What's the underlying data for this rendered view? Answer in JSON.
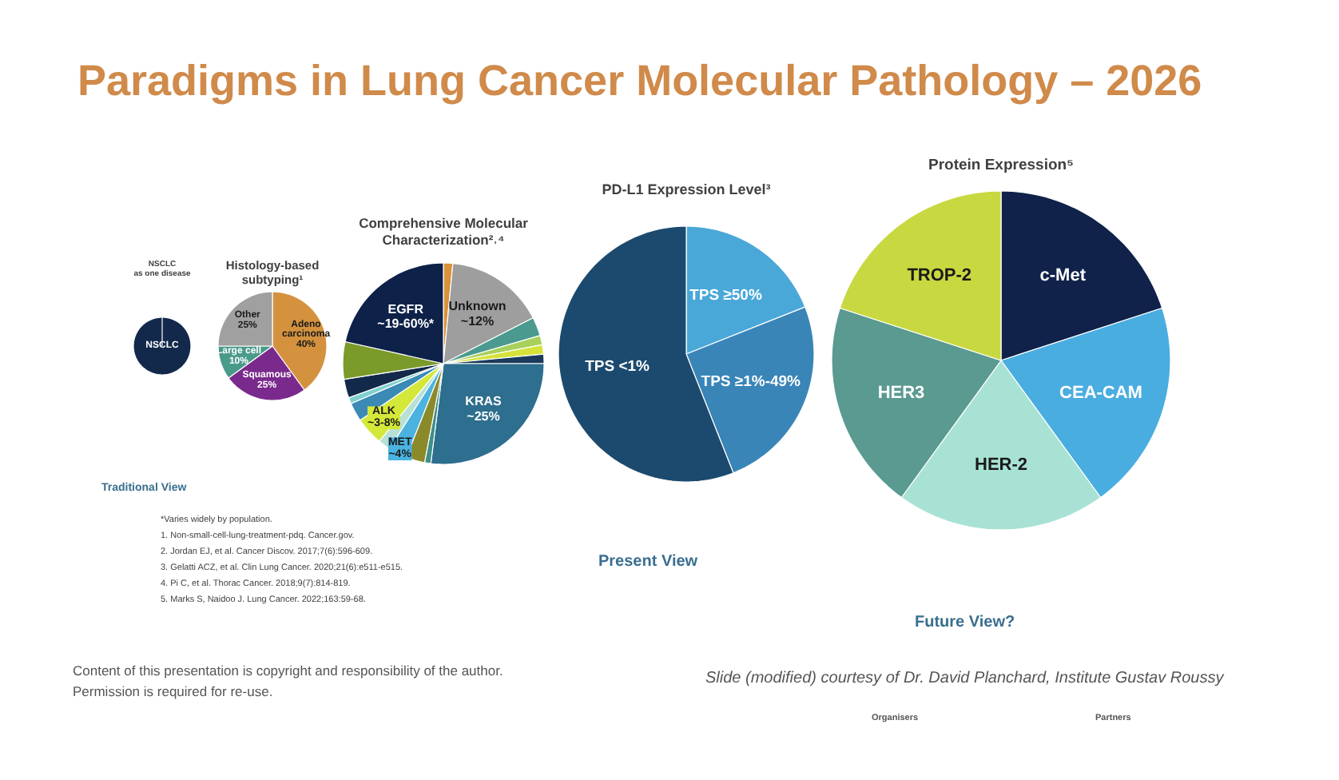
{
  "chart_data": [
    {
      "type": "other",
      "title": "Paradigms in Lung Cancer Molecular Pathology – 2026",
      "annotations": [
        "Traditional View",
        "*Varies widely by population.",
        "1. Non-small-cell-lung-treatment-pdq. Cancer.gov.",
        "2. Jordan EJ, et al. Cancer Discov. 2017;7(6):596-609.",
        "3. Gelatti ACZ, et al. Clin Lung Cancer. 2020;21(6):e511-e515.",
        "4. Pi C, et al. Thorac Cancer. 2018;9(7):814-819.",
        "5. Marks S, Naidoo J. Lung Cancer. 2022;163:59-68.",
        "Present View",
        "Future View?",
        "Content of this presentation is copyright and responsibility of the author.",
        "Permission is required for re-use.",
        "Slide (modified) courtesy of Dr. David Planchard, Institute Gustav Roussy",
        "Organisers",
        "Partners"
      ]
    },
    {
      "type": "pie",
      "title": "NSCLC as one disease",
      "categories": [
        "NSCLC"
      ],
      "values": [
        100
      ],
      "colors": [
        "#13294b"
      ]
    },
    {
      "type": "pie",
      "title": "Histology-based subtyping¹",
      "categories": [
        "Adeno carcinoma",
        "Squamous",
        "Large cell",
        "Other"
      ],
      "values": [
        40,
        25,
        10,
        25
      ],
      "value_labels": [
        "40%",
        "25%",
        "10%",
        "25%"
      ],
      "colors": [
        "#d4923f",
        "#7a2a8c",
        "#4a9a8a",
        "#a0a0a0"
      ]
    },
    {
      "type": "pie",
      "title": "Comprehensive Molecular Characterization²˒⁴",
      "categories": [
        null,
        "Unknown ~12%",
        null,
        null,
        null,
        null,
        "KRAS ~25%",
        null,
        null,
        "MET ~4%",
        null,
        "ALK ~3-8%",
        null,
        null,
        null,
        null,
        "EGFR ~19-60%*"
      ],
      "values": [
        1.5,
        16,
        3,
        1.5,
        1.5,
        1.5,
        27,
        1,
        3,
        3,
        2,
        4.5,
        3,
        1,
        3,
        6,
        21.5
      ],
      "colors": [
        "#d9913a",
        "#9e9e9e",
        "#4a9a8f",
        "#a8d05a",
        "#d6e23a",
        "#1b3a5c",
        "#2e6e8e",
        "#3f8f8a",
        "#8a8a2a",
        "#4bb3e0",
        "#b7e0d6",
        "#d4e83a",
        "#3a8ab5",
        "#7fd0d0",
        "#12294a",
        "#7a9a2a",
        "#0e2148"
      ]
    },
    {
      "type": "pie",
      "title": "PD-L1 Expression Level³",
      "categories": [
        "TPS ≥50%",
        "TPS ≥1%-49%",
        "TPS <1%"
      ],
      "values": [
        19,
        25,
        56
      ],
      "colors": [
        "#4aa8d8",
        "#3a85b8",
        "#1c4a6e"
      ]
    },
    {
      "type": "pie",
      "title": "Protein Expression⁵",
      "categories": [
        "c-Met",
        "CEA-CAM",
        "HER-2",
        "HER3",
        "TROP-2"
      ],
      "values": [
        20,
        20,
        20,
        20,
        20
      ],
      "colors": [
        "#10224a",
        "#4aade0",
        "#a8e2d4",
        "#5a9a90",
        "#c8d840"
      ]
    }
  ]
}
